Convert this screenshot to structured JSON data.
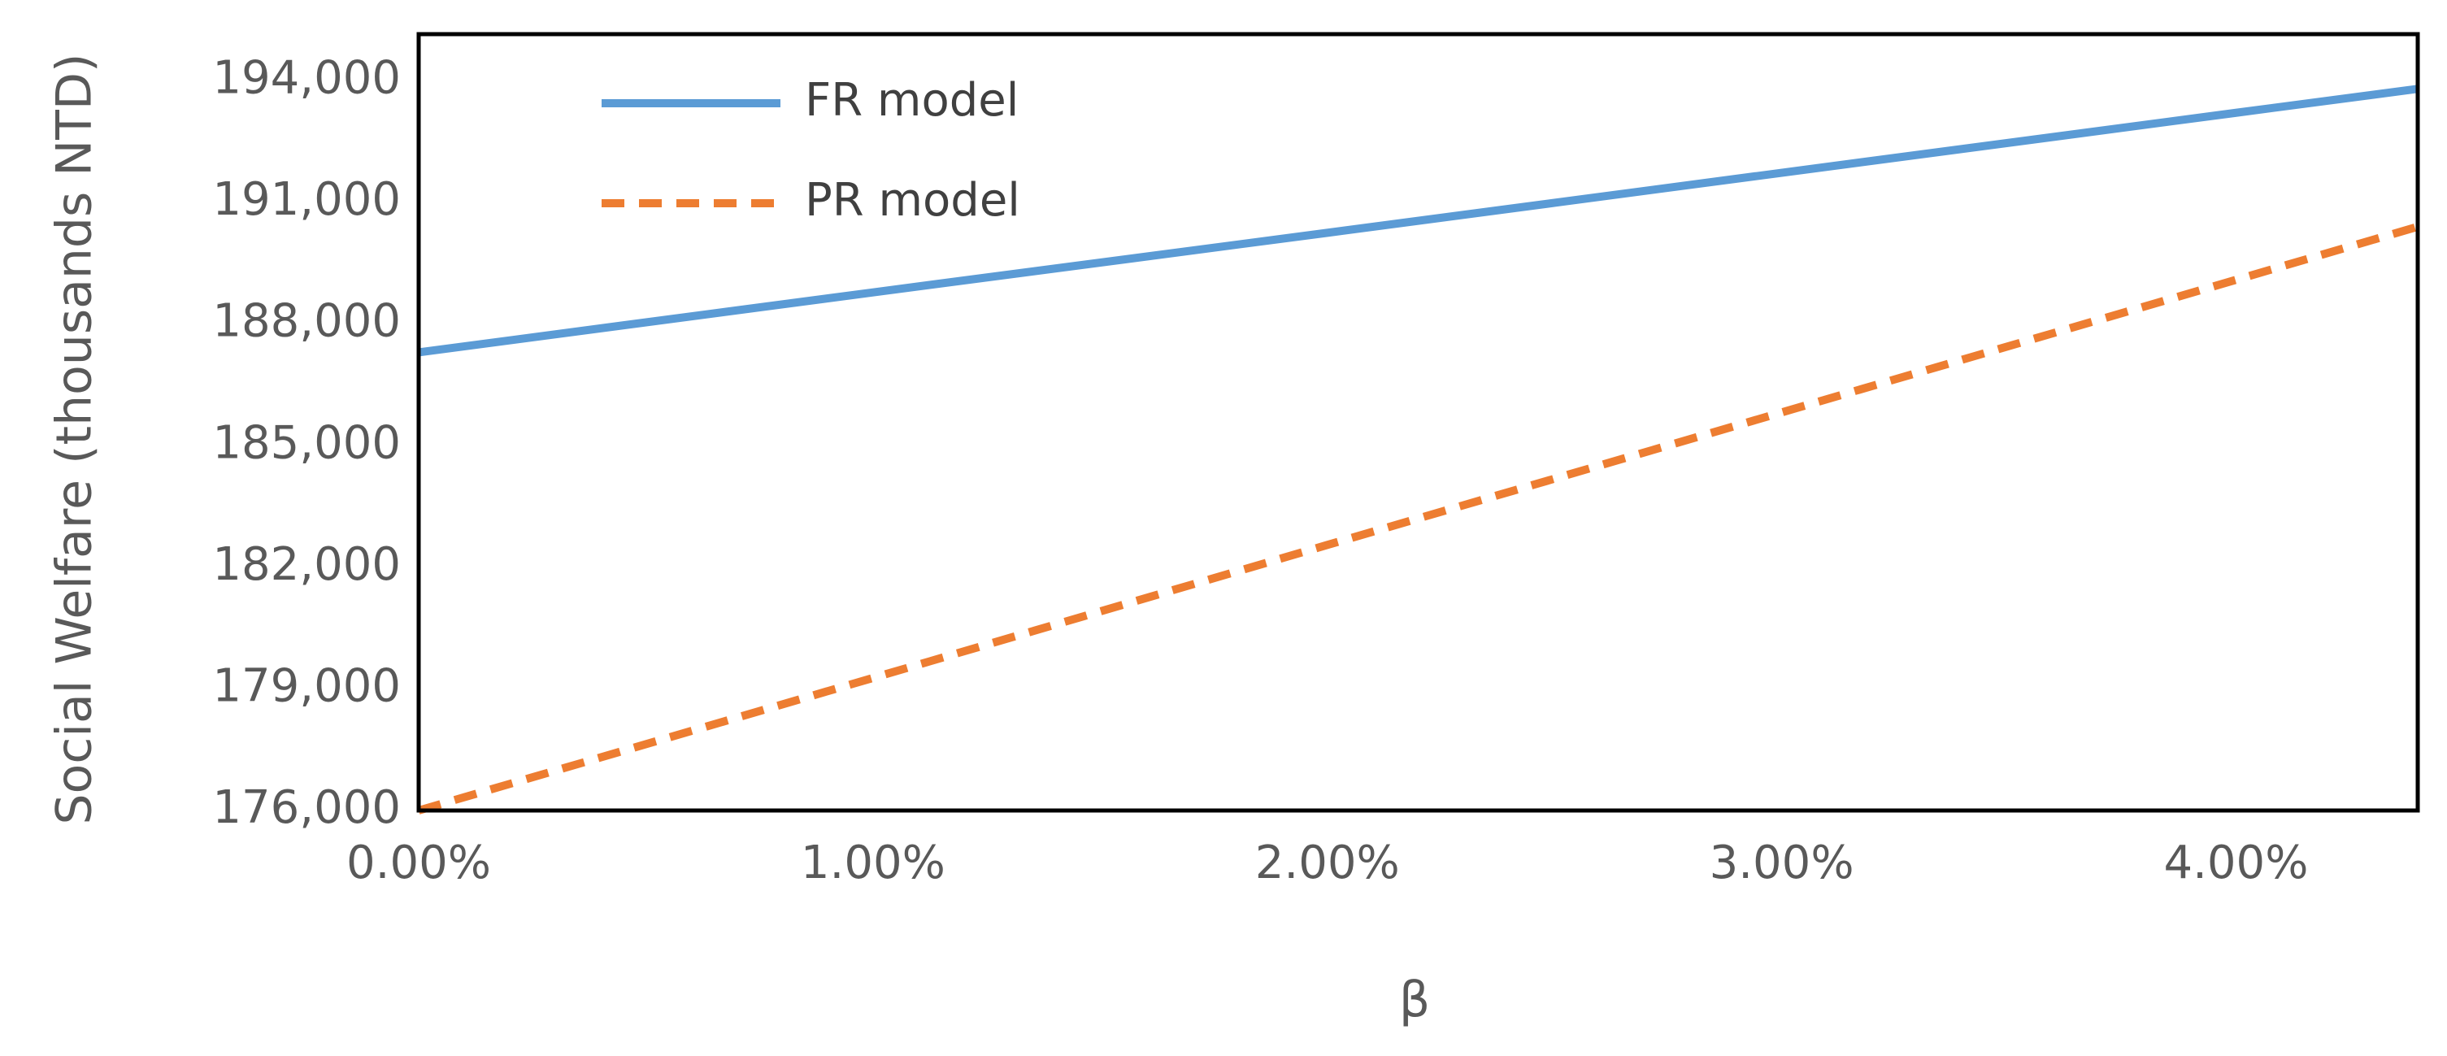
{
  "chart_data": {
    "type": "line",
    "x_label": "β",
    "y_label": "Social Welfare (thousands NTD)",
    "x": [
      0,
      1,
      2,
      3,
      4,
      4.4
    ],
    "series": [
      {
        "name": "FR model",
        "color": "#5b9bd5",
        "dash": false,
        "values": [
          187300,
          188780,
          190250,
          191730,
          193210,
          193800
        ]
      },
      {
        "name": "PR model",
        "color": "#ed7d31",
        "dash": true,
        "values": [
          176000,
          179270,
          182550,
          185820,
          189090,
          190400
        ]
      }
    ],
    "xlim": [
      0,
      4.4
    ],
    "xticks": [
      {
        "value": 0,
        "label": "0.00%"
      },
      {
        "value": 1,
        "label": "1.00%"
      },
      {
        "value": 2,
        "label": "2.00%"
      },
      {
        "value": 3,
        "label": "3.00%"
      },
      {
        "value": 4,
        "label": "4.00%"
      }
    ],
    "ylim": [
      176000,
      195150
    ],
    "yticks": [
      {
        "value": 176000,
        "label": "176,000"
      },
      {
        "value": 179000,
        "label": "179,000"
      },
      {
        "value": 182000,
        "label": "182,000"
      },
      {
        "value": 185000,
        "label": "185,000"
      },
      {
        "value": 188000,
        "label": "188,000"
      },
      {
        "value": 191000,
        "label": "191,000"
      },
      {
        "value": 194000,
        "label": "194,000"
      }
    ],
    "grid": false,
    "legend_position": "upper left"
  }
}
